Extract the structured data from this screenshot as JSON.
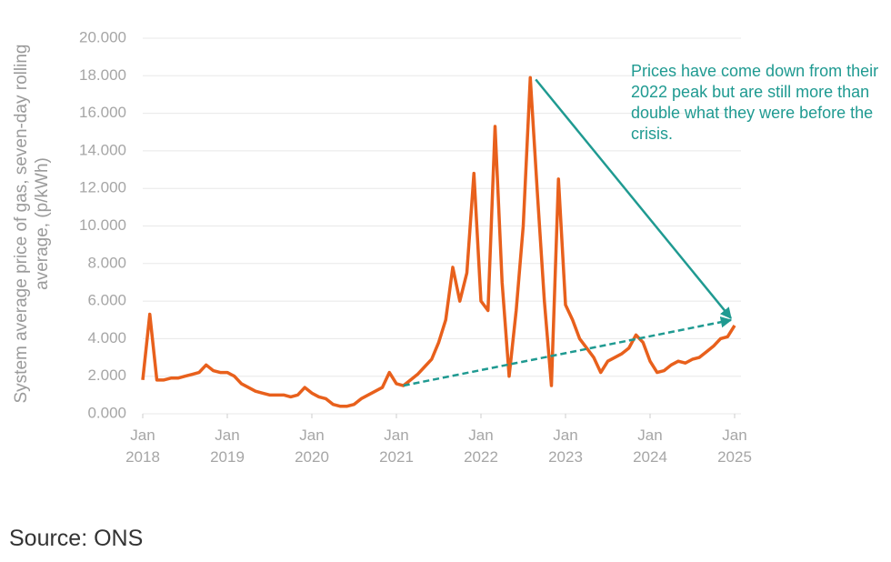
{
  "chart_data": {
    "type": "line",
    "y_label": "System average price of gas, seven-day rolling average, (p/kWh)",
    "annotation": "Prices have come down from their 2022 peak but are still more than double what they were before the crisis.",
    "source": "Source: ONS",
    "x": [
      "2018-01",
      "2018-02",
      "2018-03",
      "2018-04",
      "2018-05",
      "2018-06",
      "2018-07",
      "2018-08",
      "2018-09",
      "2018-10",
      "2018-11",
      "2018-12",
      "2019-01",
      "2019-02",
      "2019-03",
      "2019-04",
      "2019-05",
      "2019-06",
      "2019-07",
      "2019-08",
      "2019-09",
      "2019-10",
      "2019-11",
      "2019-12",
      "2020-01",
      "2020-02",
      "2020-03",
      "2020-04",
      "2020-05",
      "2020-06",
      "2020-07",
      "2020-08",
      "2020-09",
      "2020-10",
      "2020-11",
      "2020-12",
      "2021-01",
      "2021-02",
      "2021-03",
      "2021-04",
      "2021-05",
      "2021-06",
      "2021-07",
      "2021-08",
      "2021-09",
      "2021-10",
      "2021-11",
      "2021-12",
      "2022-01",
      "2022-02",
      "2022-03",
      "2022-04",
      "2022-05",
      "2022-06",
      "2022-07",
      "2022-08",
      "2022-09",
      "2022-10",
      "2022-11",
      "2022-12",
      "2023-01",
      "2023-02",
      "2023-03",
      "2023-04",
      "2023-05",
      "2023-06",
      "2023-07",
      "2023-08",
      "2023-09",
      "2023-10",
      "2023-11",
      "2023-12",
      "2024-01",
      "2024-02",
      "2024-03",
      "2024-04",
      "2024-05",
      "2024-06",
      "2024-07",
      "2024-08",
      "2024-09",
      "2024-10",
      "2024-11",
      "2024-12",
      "2025-01"
    ],
    "series": [
      {
        "name": "System average price of gas",
        "color": "#e8601c",
        "values": [
          1.8,
          5.3,
          1.8,
          1.8,
          1.9,
          1.9,
          2.0,
          2.1,
          2.2,
          2.6,
          2.3,
          2.2,
          2.2,
          2.0,
          1.6,
          1.4,
          1.2,
          1.1,
          1.0,
          1.0,
          1.0,
          0.9,
          1.0,
          1.4,
          1.1,
          0.9,
          0.8,
          0.5,
          0.4,
          0.4,
          0.5,
          0.8,
          1.0,
          1.2,
          1.4,
          2.2,
          1.6,
          1.5,
          1.8,
          2.1,
          2.5,
          2.9,
          3.8,
          5.0,
          7.8,
          6.0,
          7.5,
          12.8,
          6.0,
          5.5,
          15.3,
          7.0,
          2.0,
          5.5,
          10.0,
          17.9,
          11.8,
          6.0,
          1.5,
          12.5,
          5.8,
          5.0,
          4.0,
          3.5,
          3.0,
          2.2,
          2.8,
          3.0,
          3.2,
          3.5,
          4.2,
          3.8,
          2.8,
          2.2,
          2.3,
          2.6,
          2.8,
          2.7,
          2.9,
          3.0,
          3.3,
          3.6,
          4.0,
          4.1,
          4.7
        ]
      }
    ],
    "annotation_color": "#1f9a91",
    "xlim": [
      "2018-01",
      "2025-01"
    ],
    "xticks": [
      {
        "value": "2018-01",
        "label": "Jan 2018"
      },
      {
        "value": "2019-01",
        "label": "Jan 2019"
      },
      {
        "value": "2020-01",
        "label": "Jan 2020"
      },
      {
        "value": "2021-01",
        "label": "Jan 2021"
      },
      {
        "value": "2022-01",
        "label": "Jan 2022"
      },
      {
        "value": "2023-01",
        "label": "Jan 2023"
      },
      {
        "value": "2024-01",
        "label": "Jan 2024"
      },
      {
        "value": "2025-01",
        "label": "Jan 2025"
      }
    ],
    "ylim": [
      0,
      20
    ],
    "yticks": [
      {
        "value": 0,
        "label": "0.000"
      },
      {
        "value": 2,
        "label": "2.000"
      },
      {
        "value": 4,
        "label": "4.000"
      },
      {
        "value": 6,
        "label": "6.000"
      },
      {
        "value": 8,
        "label": "8.000"
      },
      {
        "value": 10,
        "label": "10.000"
      },
      {
        "value": 12,
        "label": "12.000"
      },
      {
        "value": 14,
        "label": "14.000"
      },
      {
        "value": 16,
        "label": "16.000"
      },
      {
        "value": 18,
        "label": "18.000"
      },
      {
        "value": 20,
        "label": "20.000"
      }
    ],
    "grid": true
  }
}
